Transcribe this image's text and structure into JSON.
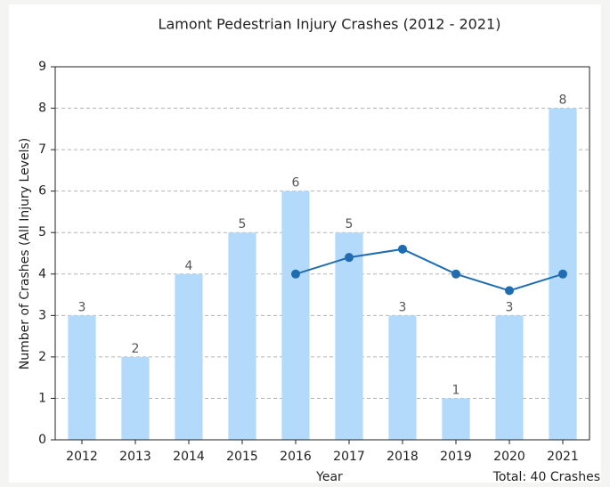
{
  "chart_data": {
    "type": "bar",
    "title": "Lamont Pedestrian Injury Crashes (2012 - 2021)",
    "xlabel": "Year",
    "ylabel": "Number of Crashes (All Injury Levels)",
    "annotation": "Total: 40 Crashes",
    "categories": [
      "2012",
      "2013",
      "2014",
      "2015",
      "2016",
      "2017",
      "2018",
      "2019",
      "2020",
      "2021"
    ],
    "series": [
      {
        "type": "bar",
        "color": "#b3d9fb",
        "values": [
          3,
          2,
          4,
          5,
          6,
          5,
          3,
          1,
          3,
          8
        ]
      },
      {
        "type": "line",
        "color": "#1f6db0",
        "values": [
          null,
          null,
          null,
          null,
          4,
          4.4,
          4.6,
          4,
          3.6,
          4
        ]
      }
    ],
    "ylim": [
      0,
      9
    ],
    "yticks": [
      0,
      1,
      2,
      3,
      4,
      5,
      6,
      7,
      8,
      9
    ],
    "grid": true
  }
}
